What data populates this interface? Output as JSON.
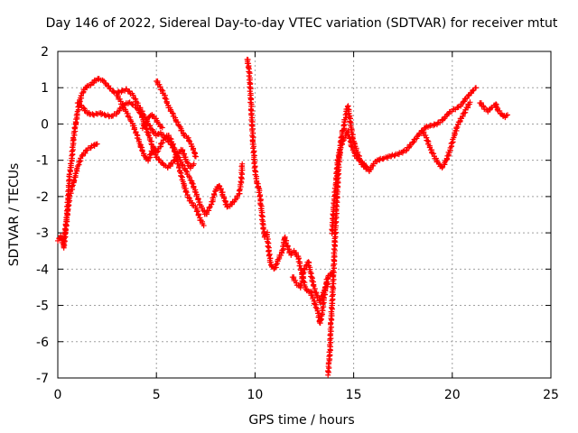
{
  "chart_data": {
    "type": "scatter",
    "title": "Day 146 of 2022, Sidereal Day-to-day VTEC variation (SDTVAR) for receiver mtut",
    "xlabel": "GPS time / hours",
    "ylabel": "SDTVAR / TECUs",
    "xlim": [
      0,
      25
    ],
    "ylim": [
      -7,
      2
    ],
    "xticks": [
      0,
      5,
      10,
      15,
      20,
      25
    ],
    "yticks": [
      -7,
      -6,
      -5,
      -4,
      -3,
      -2,
      -1,
      0,
      1,
      2
    ],
    "grid": true,
    "marker": "+",
    "color": "#ff0000",
    "series": [
      {
        "name": "SDTVAR",
        "tracks": [
          [
            [
              0.0,
              -3.2
            ],
            [
              0.15,
              -3.1
            ],
            [
              0.3,
              -3.4
            ],
            [
              0.4,
              -2.9
            ],
            [
              0.5,
              -2.4
            ],
            [
              0.6,
              -2.0
            ],
            [
              0.8,
              -1.6
            ],
            [
              1.0,
              -1.2
            ],
            [
              1.2,
              -0.9
            ],
            [
              1.5,
              -0.7
            ],
            [
              1.8,
              -0.6
            ],
            [
              2.0,
              -0.55
            ]
          ],
          [
            [
              0.3,
              -3.3
            ],
            [
              0.45,
              -2.6
            ],
            [
              0.55,
              -1.8
            ],
            [
              0.6,
              -1.4
            ],
            [
              0.7,
              -1.0
            ],
            [
              0.8,
              -0.4
            ],
            [
              0.9,
              0.0
            ],
            [
              1.0,
              0.3
            ],
            [
              1.1,
              0.6
            ],
            [
              1.2,
              0.8
            ],
            [
              1.4,
              1.0
            ],
            [
              1.7,
              1.1
            ],
            [
              2.0,
              1.25
            ],
            [
              2.3,
              1.2
            ],
            [
              2.6,
              1.0
            ],
            [
              2.9,
              0.85
            ],
            [
              3.2,
              0.9
            ],
            [
              3.5,
              0.95
            ],
            [
              3.8,
              0.8
            ],
            [
              4.1,
              0.5
            ],
            [
              4.4,
              0.2
            ],
            [
              4.6,
              0.0
            ],
            [
              4.8,
              -0.2
            ],
            [
              5.0,
              -0.3
            ],
            [
              5.2,
              -0.25
            ],
            [
              5.5,
              -0.4
            ],
            [
              5.8,
              -0.6
            ],
            [
              6.0,
              -0.8
            ],
            [
              6.2,
              -1.0
            ],
            [
              6.5,
              -1.3
            ],
            [
              6.8,
              -1.6
            ],
            [
              7.0,
              -1.9
            ],
            [
              7.2,
              -2.2
            ],
            [
              7.5,
              -2.5
            ],
            [
              7.8,
              -2.2
            ],
            [
              8.0,
              -1.8
            ],
            [
              8.2,
              -1.7
            ],
            [
              8.4,
              -2.0
            ],
            [
              8.6,
              -2.3
            ],
            [
              8.8,
              -2.2
            ],
            [
              9.0,
              -2.1
            ],
            [
              9.2,
              -1.9
            ],
            [
              9.3,
              -1.6
            ],
            [
              9.35,
              -1.1
            ]
          ],
          [
            [
              1.0,
              0.6
            ],
            [
              1.2,
              0.5
            ],
            [
              1.5,
              0.3
            ],
            [
              1.8,
              0.25
            ],
            [
              2.1,
              0.3
            ],
            [
              2.4,
              0.25
            ],
            [
              2.7,
              0.2
            ],
            [
              3.0,
              0.3
            ],
            [
              3.3,
              0.5
            ],
            [
              3.6,
              0.6
            ],
            [
              3.9,
              0.5
            ],
            [
              4.2,
              0.3
            ],
            [
              4.4,
              0.0
            ],
            [
              4.6,
              -0.3
            ],
            [
              4.8,
              -0.6
            ],
            [
              5.0,
              -0.8
            ],
            [
              5.2,
              -0.6
            ],
            [
              5.4,
              -0.4
            ],
            [
              5.6,
              -0.3
            ],
            [
              5.8,
              -0.5
            ],
            [
              6.0,
              -0.9
            ],
            [
              6.2,
              -1.3
            ],
            [
              6.4,
              -1.7
            ],
            [
              6.6,
              -2.0
            ],
            [
              6.8,
              -2.2
            ],
            [
              7.0,
              -2.3
            ],
            [
              7.2,
              -2.6
            ],
            [
              7.4,
              -2.8
            ]
          ],
          [
            [
              3.0,
              0.8
            ],
            [
              3.2,
              0.6
            ],
            [
              3.5,
              0.3
            ],
            [
              3.8,
              0.0
            ],
            [
              4.0,
              -0.3
            ],
            [
              4.2,
              -0.6
            ],
            [
              4.4,
              -0.9
            ],
            [
              4.6,
              -1.0
            ],
            [
              4.8,
              -0.7
            ],
            [
              5.0,
              -0.9
            ],
            [
              5.3,
              -1.1
            ],
            [
              5.6,
              -1.2
            ],
            [
              5.9,
              -1.0
            ],
            [
              6.1,
              -0.8
            ],
            [
              6.3,
              -0.7
            ],
            [
              6.5,
              -1.0
            ],
            [
              6.7,
              -1.2
            ],
            [
              6.9,
              -1.1
            ]
          ],
          [
            [
              5.0,
              1.2
            ],
            [
              5.2,
              1.0
            ],
            [
              5.4,
              0.8
            ],
            [
              5.6,
              0.5
            ],
            [
              5.8,
              0.3
            ],
            [
              6.0,
              0.1
            ],
            [
              6.2,
              -0.1
            ],
            [
              6.4,
              -0.3
            ],
            [
              6.6,
              -0.4
            ],
            [
              6.8,
              -0.6
            ],
            [
              7.0,
              -0.9
            ]
          ],
          [
            [
              4.3,
              -0.1
            ],
            [
              4.5,
              0.1
            ],
            [
              4.7,
              0.25
            ],
            [
              4.9,
              0.2
            ],
            [
              5.1,
              0.0
            ],
            [
              5.3,
              -0.1
            ]
          ],
          [
            [
              9.6,
              1.8
            ],
            [
              9.7,
              1.5
            ],
            [
              9.8,
              0.5
            ],
            [
              9.9,
              -0.5
            ],
            [
              10.0,
              -1.3
            ],
            [
              10.1,
              -1.6
            ],
            [
              10.2,
              -1.8
            ],
            [
              10.3,
              -2.2
            ],
            [
              10.4,
              -2.8
            ],
            [
              10.5,
              -3.1
            ],
            [
              10.6,
              -3.0
            ],
            [
              10.7,
              -3.5
            ],
            [
              10.8,
              -3.9
            ],
            [
              11.0,
              -4.0
            ],
            [
              11.2,
              -3.7
            ],
            [
              11.4,
              -3.5
            ],
            [
              11.5,
              -3.1
            ],
            [
              11.6,
              -3.3
            ],
            [
              11.8,
              -3.6
            ],
            [
              12.0,
              -3.5
            ],
            [
              12.2,
              -3.7
            ],
            [
              12.4,
              -4.2
            ],
            [
              12.6,
              -4.6
            ],
            [
              12.8,
              -4.6
            ],
            [
              13.0,
              -4.9
            ],
            [
              13.2,
              -5.2
            ],
            [
              13.3,
              -5.5
            ],
            [
              13.4,
              -5.2
            ],
            [
              13.5,
              -4.8
            ],
            [
              13.6,
              -4.4
            ],
            [
              13.7,
              -4.2
            ],
            [
              13.9,
              -4.1
            ]
          ],
          [
            [
              11.9,
              -4.2
            ],
            [
              12.1,
              -4.4
            ],
            [
              12.3,
              -4.5
            ],
            [
              12.5,
              -4.0
            ],
            [
              12.7,
              -3.8
            ],
            [
              12.9,
              -4.3
            ],
            [
              13.1,
              -4.7
            ],
            [
              13.3,
              -4.9
            ],
            [
              13.5,
              -4.6
            ],
            [
              13.7,
              -4.4
            ]
          ],
          [
            [
              13.7,
              -6.9
            ],
            [
              13.75,
              -6.6
            ],
            [
              13.8,
              -6.2
            ],
            [
              13.85,
              -5.5
            ],
            [
              13.9,
              -5.0
            ],
            [
              13.95,
              -4.5
            ],
            [
              14.0,
              -3.8
            ],
            [
              14.05,
              -3.2
            ],
            [
              14.1,
              -2.6
            ],
            [
              14.15,
              -2.1
            ],
            [
              14.2,
              -1.5
            ],
            [
              14.25,
              -1.1
            ],
            [
              14.3,
              -0.8
            ],
            [
              14.35,
              -0.5
            ],
            [
              14.4,
              -0.3
            ],
            [
              14.45,
              -0.2
            ],
            [
              14.5,
              -0.1
            ],
            [
              14.55,
              0.1
            ],
            [
              14.6,
              0.2
            ],
            [
              14.65,
              0.4
            ],
            [
              14.7,
              0.5
            ],
            [
              14.8,
              0.2
            ],
            [
              14.9,
              -0.2
            ],
            [
              15.0,
              -0.5
            ],
            [
              15.2,
              -0.8
            ],
            [
              15.4,
              -1.1
            ],
            [
              15.6,
              -1.2
            ],
            [
              15.8,
              -1.3
            ],
            [
              16.0,
              -1.1
            ],
            [
              16.2,
              -1.0
            ],
            [
              16.5,
              -0.95
            ],
            [
              16.8,
              -0.9
            ],
            [
              17.1,
              -0.85
            ],
            [
              17.4,
              -0.8
            ],
            [
              17.7,
              -0.7
            ],
            [
              18.0,
              -0.5
            ],
            [
              18.3,
              -0.3
            ],
            [
              18.6,
              -0.1
            ],
            [
              18.9,
              -0.05
            ],
            [
              19.2,
              0.0
            ],
            [
              19.5,
              0.1
            ],
            [
              19.8,
              0.3
            ],
            [
              20.1,
              0.4
            ],
            [
              20.4,
              0.5
            ],
            [
              20.7,
              0.7
            ],
            [
              21.0,
              0.9
            ],
            [
              21.2,
              1.0
            ]
          ],
          [
            [
              13.9,
              -3.0
            ],
            [
              14.0,
              -2.2
            ],
            [
              14.1,
              -1.6
            ],
            [
              14.2,
              -1.0
            ],
            [
              14.3,
              -0.7
            ],
            [
              14.5,
              -0.4
            ],
            [
              14.7,
              -0.2
            ],
            [
              14.9,
              -0.6
            ],
            [
              15.1,
              -0.9
            ],
            [
              15.3,
              -1.0
            ],
            [
              15.5,
              -1.1
            ],
            [
              15.7,
              -1.2
            ]
          ],
          [
            [
              18.5,
              -0.2
            ],
            [
              18.7,
              -0.4
            ],
            [
              18.9,
              -0.7
            ],
            [
              19.1,
              -0.9
            ],
            [
              19.3,
              -1.1
            ],
            [
              19.5,
              -1.2
            ],
            [
              19.7,
              -1.0
            ],
            [
              19.9,
              -0.7
            ],
            [
              20.1,
              -0.3
            ],
            [
              20.3,
              0.0
            ],
            [
              20.5,
              0.2
            ],
            [
              20.7,
              0.4
            ],
            [
              20.9,
              0.6
            ]
          ],
          [
            [
              21.4,
              0.6
            ],
            [
              21.6,
              0.45
            ],
            [
              21.8,
              0.35
            ],
            [
              22.0,
              0.45
            ],
            [
              22.2,
              0.55
            ],
            [
              22.3,
              0.4
            ],
            [
              22.5,
              0.25
            ],
            [
              22.7,
              0.2
            ],
            [
              22.8,
              0.25
            ]
          ]
        ]
      }
    ]
  }
}
